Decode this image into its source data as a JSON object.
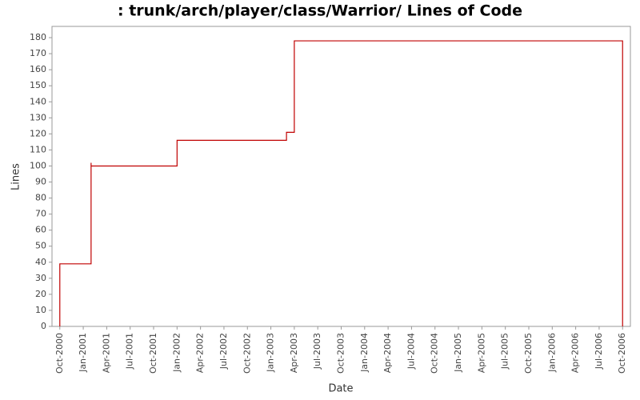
{
  "chart_data": {
    "type": "step",
    "title": ": trunk/arch/player/class/Warrior/ Lines of Code",
    "x_label": "Date",
    "y_label": "Lines",
    "x": [
      "2000-10",
      "2000-10",
      "2001-02",
      "2001-02",
      "2002-01",
      "2003-03",
      "2003-04",
      "2003-04",
      "2006-10"
    ],
    "series": [
      {
        "name": "Lines",
        "color": "#c00000",
        "values": [
          0,
          39,
          102,
          100,
          116,
          121,
          162,
          178,
          0
        ]
      }
    ],
    "xlim": [
      "2000-09",
      "2006-11"
    ],
    "xticks": [
      {
        "value": "2000-10",
        "label": "Oct-2000"
      },
      {
        "value": "2001-01",
        "label": "Jan-2001"
      },
      {
        "value": "2001-04",
        "label": "Apr-2001"
      },
      {
        "value": "2001-07",
        "label": "Jul-2001"
      },
      {
        "value": "2001-10",
        "label": "Oct-2001"
      },
      {
        "value": "2002-01",
        "label": "Jan-2002"
      },
      {
        "value": "2002-04",
        "label": "Apr-2002"
      },
      {
        "value": "2002-07",
        "label": "Jul-2002"
      },
      {
        "value": "2002-10",
        "label": "Oct-2002"
      },
      {
        "value": "2003-01",
        "label": "Jan-2003"
      },
      {
        "value": "2003-04",
        "label": "Apr-2003"
      },
      {
        "value": "2003-07",
        "label": "Jul-2003"
      },
      {
        "value": "2003-10",
        "label": "Oct-2003"
      },
      {
        "value": "2004-01",
        "label": "Jan-2004"
      },
      {
        "value": "2004-04",
        "label": "Apr-2004"
      },
      {
        "value": "2004-07",
        "label": "Jul-2004"
      },
      {
        "value": "2004-10",
        "label": "Oct-2004"
      },
      {
        "value": "2005-01",
        "label": "Jan-2005"
      },
      {
        "value": "2005-04",
        "label": "Apr-2005"
      },
      {
        "value": "2005-07",
        "label": "Jul-2005"
      },
      {
        "value": "2005-10",
        "label": "Oct-2005"
      },
      {
        "value": "2006-01",
        "label": "Jan-2006"
      },
      {
        "value": "2006-04",
        "label": "Apr-2006"
      },
      {
        "value": "2006-07",
        "label": "Jul-2006"
      },
      {
        "value": "2006-10",
        "label": "Oct-2006"
      }
    ],
    "ylim": [
      0,
      187
    ],
    "yticks": [
      0,
      10,
      20,
      30,
      40,
      50,
      60,
      70,
      80,
      90,
      100,
      110,
      120,
      130,
      140,
      150,
      160,
      170,
      180
    ],
    "grid": false
  }
}
